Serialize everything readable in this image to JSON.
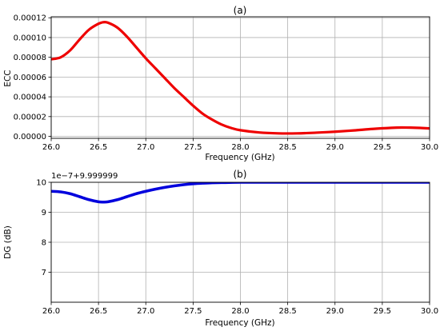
{
  "chart_data": [
    {
      "type": "line",
      "title": "(a)",
      "xlabel": "Frequency (GHz)",
      "ylabel": "ECC",
      "xlim": [
        26.0,
        30.0
      ],
      "ylim": [
        -2e-06,
        0.000121
      ],
      "xticks": [
        26.0,
        26.5,
        27.0,
        27.5,
        28.0,
        28.5,
        29.0,
        29.5,
        30.0
      ],
      "xtick_labels": [
        "26.0",
        "26.5",
        "27.0",
        "27.5",
        "28.0",
        "28.5",
        "29.0",
        "29.5",
        "30.0"
      ],
      "yticks": [
        0,
        2e-05,
        4e-05,
        6e-05,
        8e-05,
        0.0001,
        0.00012
      ],
      "ytick_labels": [
        "0.00000",
        "0.00002",
        "0.00004",
        "0.00006",
        "0.00008",
        "0.00010",
        "0.00012"
      ],
      "grid": true,
      "series": [
        {
          "color": "#ee0000",
          "x": [
            26.0,
            26.1,
            26.2,
            26.3,
            26.4,
            26.5,
            26.55,
            26.6,
            26.7,
            26.8,
            26.9,
            27.0,
            27.1,
            27.2,
            27.3,
            27.4,
            27.5,
            27.6,
            27.7,
            27.8,
            27.9,
            28.0,
            28.2,
            28.4,
            28.6,
            28.8,
            29.0,
            29.2,
            29.4,
            29.6,
            29.7,
            29.8,
            29.9,
            30.0
          ],
          "y": [
            7.8e-05,
            8e-05,
            8.7e-05,
            9.8e-05,
            0.000108,
            0.000114,
            0.0001155,
            0.000115,
            0.00011,
            0.000101,
            9e-05,
            7.9e-05,
            6.9e-05,
            5.9e-05,
            4.9e-05,
            4e-05,
            3.1e-05,
            2.3e-05,
            1.7e-05,
            1.2e-05,
            8.5e-06,
            6.2e-06,
            3.9e-06,
            3e-06,
            3e-06,
            3.7e-06,
            4.7e-06,
            6e-06,
            7.5e-06,
            8.6e-06,
            8.9e-06,
            8.8e-06,
            8.5e-06,
            8e-06
          ]
        }
      ]
    },
    {
      "type": "line",
      "title": "(b)",
      "xlabel": "Frequency (GHz)",
      "ylabel": "DG (dB)",
      "offset_text": "1e−7+9.999999",
      "xlim": [
        26.0,
        30.0
      ],
      "ylim": [
        6.0,
        10.0
      ],
      "xticks": [
        26.0,
        26.5,
        27.0,
        27.5,
        28.0,
        28.5,
        29.0,
        29.5,
        30.0
      ],
      "xtick_labels": [
        "26.0",
        "26.5",
        "27.0",
        "27.5",
        "28.0",
        "28.5",
        "29.0",
        "29.5",
        "30.0"
      ],
      "yticks": [
        7,
        8,
        9,
        10
      ],
      "ytick_labels": [
        "7",
        "8",
        "9",
        "10"
      ],
      "grid": true,
      "series": [
        {
          "color": "#0000dd",
          "x": [
            26.0,
            26.1,
            26.2,
            26.3,
            26.4,
            26.5,
            26.55,
            26.6,
            26.7,
            26.8,
            26.9,
            27.0,
            27.1,
            27.2,
            27.3,
            27.4,
            27.5,
            27.6,
            27.7,
            27.8,
            28.0,
            28.5,
            29.0,
            29.5,
            30.0
          ],
          "y": [
            9.7,
            9.68,
            9.62,
            9.52,
            9.42,
            9.35,
            9.34,
            9.35,
            9.42,
            9.52,
            9.62,
            9.7,
            9.77,
            9.83,
            9.88,
            9.92,
            9.95,
            9.97,
            9.985,
            9.99,
            10.0,
            10.0,
            10.0,
            10.0,
            10.0
          ]
        }
      ]
    }
  ]
}
